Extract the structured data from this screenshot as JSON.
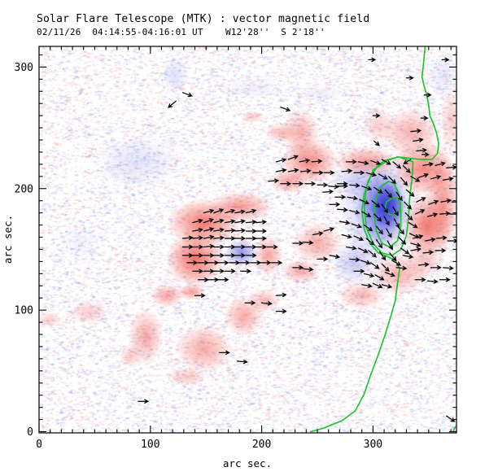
{
  "colors": {
    "red": "#f0564b",
    "blue_light": "#7c82e8",
    "blue_mid": "#4d52dc",
    "blue_deep": "#3136cd",
    "green": "#17c428",
    "noise_blue": "#969ce8",
    "noise_red": "#f4a09b",
    "axis": "#000000"
  },
  "chart_data": {
    "type": "heatmap",
    "title": "Solar Flare Telescope (MTK) : vector magnetic field",
    "subtitle": "02/11/26  04:14:55-04:16:01 UT    W12'28''  S 2'18''",
    "xlabel": "arc sec.",
    "ylabel": "arc sec.",
    "xlim": [
      0,
      375
    ],
    "ylim": [
      -1,
      317
    ],
    "x_major_ticks": [
      0,
      100,
      200,
      300
    ],
    "y_major_ticks": [
      0,
      100,
      200,
      300
    ],
    "minor_tick_step": 10,
    "grid": false,
    "legend": null,
    "polarity_regions": {
      "positive_red": [
        [
          148,
          172,
          33,
          20,
          0.8
        ],
        [
          140,
          142,
          26,
          23,
          0.85
        ],
        [
          181,
          185,
          29,
          13,
          0.6
        ],
        [
          206,
          145,
          13,
          17,
          0.55
        ],
        [
          250,
          155,
          22,
          17,
          0.5
        ],
        [
          235,
          132,
          18,
          10,
          0.5
        ],
        [
          243,
          222,
          26,
          19,
          0.7
        ],
        [
          224,
          206,
          18,
          10,
          0.55
        ],
        [
          217,
          246,
          15,
          8,
          0.4
        ],
        [
          192,
          259,
          11,
          5,
          0.3
        ],
        [
          235,
          246,
          18,
          20,
          0.45
        ],
        [
          294,
          222,
          29,
          13,
          0.6
        ],
        [
          345,
          216,
          29,
          23,
          0.7
        ],
        [
          349,
          169,
          22,
          27,
          0.8
        ],
        [
          363,
          189,
          15,
          40,
          0.6
        ],
        [
          334,
          246,
          26,
          20,
          0.45
        ],
        [
          305,
          252,
          15,
          15,
          0.3
        ],
        [
          345,
          140,
          18,
          14,
          0.35
        ],
        [
          323,
          129,
          26,
          17,
          0.45
        ],
        [
          290,
          112,
          22,
          12,
          0.4
        ],
        [
          371,
          256,
          11,
          27,
          0.3
        ],
        [
          115,
          112,
          15,
          10,
          0.5
        ],
        [
          137,
          115,
          13,
          7,
          0.55
        ],
        [
          96,
          78,
          16,
          23,
          0.5
        ],
        [
          148,
          68,
          26,
          20,
          0.5
        ],
        [
          184,
          95,
          18,
          17,
          0.5
        ],
        [
          202,
          108,
          15,
          10,
          0.4
        ],
        [
          133,
          45,
          18,
          8,
          0.35
        ],
        [
          82,
          62,
          11,
          10,
          0.3
        ],
        [
          45,
          98,
          18,
          10,
          0.3
        ],
        [
          9,
          92,
          11,
          7,
          0.3
        ]
      ],
      "negative_blue": [
        [
          305,
          182,
          35,
          46,
          0.55,
          "blue_light"
        ],
        [
          308,
          185,
          23,
          32,
          0.8,
          "blue_mid"
        ],
        [
          313,
          186,
          15,
          20,
          0.95,
          "blue_deep"
        ],
        [
          283,
          139,
          20,
          19,
          0.4,
          "blue_light"
        ],
        [
          283,
          206,
          22,
          15,
          0.32,
          "blue_light"
        ],
        [
          182,
          147,
          15,
          11,
          0.85,
          "blue_light"
        ],
        [
          89,
          222,
          40,
          23,
          0.22,
          "blue_light"
        ],
        [
          122,
          293,
          13,
          15,
          0.25,
          "blue_light"
        ],
        [
          363,
          293,
          15,
          19,
          0.18,
          "blue_light"
        ],
        [
          192,
          283,
          29,
          12,
          0.12,
          "blue_light"
        ],
        [
          254,
          279,
          26,
          8,
          0.12,
          "blue_light"
        ],
        [
          38,
          155,
          22,
          17,
          0.1,
          "blue_light"
        ]
      ]
    },
    "neutral_line": [
      [
        347,
        318
      ],
      [
        346,
        309
      ],
      [
        345,
        300
      ],
      [
        344,
        292
      ],
      [
        346,
        284
      ],
      [
        348,
        278
      ],
      [
        350,
        269
      ],
      [
        351,
        260
      ],
      [
        354,
        254
      ],
      [
        357,
        246
      ],
      [
        359,
        237
      ],
      [
        358,
        229
      ],
      [
        353,
        224
      ],
      [
        343,
        224
      ],
      [
        333,
        225
      ],
      [
        322,
        226
      ],
      [
        313,
        223
      ],
      [
        303,
        217
      ],
      [
        296,
        207
      ],
      [
        292,
        195
      ],
      [
        290,
        182
      ],
      [
        292,
        167
      ],
      [
        297,
        155
      ],
      [
        305,
        147
      ],
      [
        313,
        144
      ],
      [
        320,
        141
      ],
      [
        324,
        134
      ],
      [
        322,
        122
      ],
      [
        320,
        108
      ],
      [
        316,
        95
      ],
      [
        311,
        80
      ],
      [
        305,
        64
      ],
      [
        298,
        47
      ],
      [
        292,
        31
      ],
      [
        284,
        17
      ],
      [
        272,
        9
      ],
      [
        256,
        3
      ],
      [
        244,
        0
      ]
    ],
    "neutral_line_2": [
      [
        372,
        0
      ],
      [
        374,
        4
      ]
    ],
    "contours": [
      [
        [
          336,
          222
        ],
        [
          323,
          226
        ],
        [
          310,
          223
        ],
        [
          300,
          215
        ],
        [
          294,
          201
        ],
        [
          292,
          185
        ],
        [
          294,
          168
        ],
        [
          300,
          155
        ],
        [
          308,
          147
        ],
        [
          317,
          145
        ],
        [
          325,
          150
        ],
        [
          330,
          161
        ],
        [
          332,
          177
        ],
        [
          333,
          193
        ],
        [
          335,
          208
        ]
      ],
      [
        [
          314,
          206
        ],
        [
          306,
          201
        ],
        [
          302,
          190
        ],
        [
          301,
          178
        ],
        [
          303,
          165
        ],
        [
          308,
          155
        ],
        [
          315,
          152
        ],
        [
          322,
          157
        ],
        [
          325,
          169
        ],
        [
          325,
          182
        ],
        [
          323,
          196
        ],
        [
          319,
          204
        ]
      ],
      [
        [
          318,
          193
        ],
        [
          312,
          189
        ],
        [
          311,
          184
        ],
        [
          314,
          179
        ],
        [
          319,
          178
        ],
        [
          324,
          182
        ],
        [
          325,
          188
        ],
        [
          322,
          192
        ]
      ]
    ],
    "vectors": [
      [
        148,
        180,
        15
      ],
      [
        157,
        180,
        20
      ],
      [
        167,
        180,
        15
      ],
      [
        176,
        180,
        10
      ],
      [
        186,
        180,
        15
      ],
      [
        138,
        172,
        15
      ],
      [
        148,
        172,
        20
      ],
      [
        157,
        172,
        15
      ],
      [
        167,
        172,
        10
      ],
      [
        176,
        172,
        10
      ],
      [
        186,
        172,
        5
      ],
      [
        195,
        172,
        5
      ],
      [
        138,
        165,
        10
      ],
      [
        148,
        165,
        15
      ],
      [
        157,
        165,
        10
      ],
      [
        167,
        165,
        5
      ],
      [
        176,
        165,
        5
      ],
      [
        186,
        165,
        0
      ],
      [
        195,
        165,
        0
      ],
      [
        129,
        159,
        5
      ],
      [
        138,
        159,
        5
      ],
      [
        148,
        159,
        10
      ],
      [
        157,
        159,
        5
      ],
      [
        167,
        159,
        0
      ],
      [
        176,
        159,
        0
      ],
      [
        186,
        159,
        0
      ],
      [
        195,
        159,
        0
      ],
      [
        129,
        152,
        0
      ],
      [
        138,
        152,
        0
      ],
      [
        148,
        152,
        5
      ],
      [
        157,
        152,
        0
      ],
      [
        167,
        152,
        0
      ],
      [
        176,
        152,
        0
      ],
      [
        186,
        152,
        0
      ],
      [
        195,
        152,
        0
      ],
      [
        205,
        152,
        0
      ],
      [
        129,
        145,
        0
      ],
      [
        138,
        145,
        0
      ],
      [
        148,
        145,
        0
      ],
      [
        157,
        145,
        0
      ],
      [
        167,
        145,
        0
      ],
      [
        176,
        145,
        0
      ],
      [
        186,
        145,
        0
      ],
      [
        133,
        139,
        0
      ],
      [
        143,
        139,
        0
      ],
      [
        152,
        139,
        0
      ],
      [
        161,
        139,
        0
      ],
      [
        171,
        139,
        0
      ],
      [
        180,
        139,
        0
      ],
      [
        190,
        139,
        0
      ],
      [
        199,
        139,
        0
      ],
      [
        209,
        139,
        0
      ],
      [
        138,
        132,
        0
      ],
      [
        148,
        132,
        0
      ],
      [
        157,
        132,
        0
      ],
      [
        167,
        132,
        0
      ],
      [
        181,
        132,
        0
      ],
      [
        143,
        125,
        0
      ],
      [
        152,
        125,
        0
      ],
      [
        161,
        125,
        0
      ],
      [
        228,
        155,
        0
      ],
      [
        237,
        156,
        -5
      ],
      [
        246,
        162,
        10
      ],
      [
        256,
        165,
        15
      ],
      [
        261,
        145,
        -10
      ],
      [
        250,
        142,
        0
      ],
      [
        228,
        135,
        0
      ],
      [
        237,
        134,
        -5
      ],
      [
        213,
        222,
        15
      ],
      [
        224,
        224,
        20
      ],
      [
        234,
        222,
        10
      ],
      [
        245,
        222,
        5
      ],
      [
        213,
        214,
        10
      ],
      [
        224,
        214,
        10
      ],
      [
        235,
        214,
        5
      ],
      [
        246,
        213,
        0
      ],
      [
        256,
        213,
        0
      ],
      [
        206,
        206,
        5
      ],
      [
        217,
        204,
        0
      ],
      [
        228,
        204,
        0
      ],
      [
        239,
        204,
        0
      ],
      [
        250,
        203,
        0
      ],
      [
        260,
        202,
        -5
      ],
      [
        268,
        202,
        0
      ],
      [
        276,
        222,
        0
      ],
      [
        287,
        222,
        -10
      ],
      [
        298,
        223,
        -20
      ],
      [
        308,
        224,
        -30
      ],
      [
        318,
        222,
        -40
      ],
      [
        327,
        219,
        -45
      ],
      [
        272,
        214,
        5
      ],
      [
        283,
        213,
        0
      ],
      [
        294,
        213,
        -15
      ],
      [
        305,
        212,
        -30
      ],
      [
        314,
        210,
        -45
      ],
      [
        325,
        209,
        -50
      ],
      [
        334,
        210,
        -30
      ],
      [
        268,
        204,
        0
      ],
      [
        279,
        203,
        -5
      ],
      [
        290,
        202,
        -20
      ],
      [
        301,
        201,
        -35
      ],
      [
        311,
        199,
        -50
      ],
      [
        321,
        197,
        -55
      ],
      [
        330,
        199,
        -40
      ],
      [
        266,
        193,
        0
      ],
      [
        277,
        193,
        -10
      ],
      [
        288,
        191,
        -25
      ],
      [
        299,
        190,
        -40
      ],
      [
        308,
        187,
        -55
      ],
      [
        318,
        185,
        -60
      ],
      [
        328,
        189,
        -45
      ],
      [
        268,
        183,
        -5
      ],
      [
        279,
        182,
        -15
      ],
      [
        290,
        181,
        -30
      ],
      [
        301,
        179,
        -45
      ],
      [
        310,
        177,
        -60
      ],
      [
        319,
        175,
        -60
      ],
      [
        329,
        180,
        -45
      ],
      [
        270,
        173,
        -10
      ],
      [
        281,
        171,
        -20
      ],
      [
        292,
        170,
        -35
      ],
      [
        303,
        169,
        -50
      ],
      [
        312,
        167,
        -60
      ],
      [
        322,
        169,
        -50
      ],
      [
        332,
        172,
        -30
      ],
      [
        272,
        162,
        -15
      ],
      [
        283,
        161,
        -25
      ],
      [
        294,
        159,
        -40
      ],
      [
        303,
        158,
        -55
      ],
      [
        313,
        157,
        -60
      ],
      [
        323,
        160,
        -45
      ],
      [
        333,
        163,
        -25
      ],
      [
        276,
        152,
        -10
      ],
      [
        287,
        151,
        -25
      ],
      [
        296,
        149,
        -40
      ],
      [
        306,
        148,
        -55
      ],
      [
        315,
        147,
        -50
      ],
      [
        325,
        151,
        -35
      ],
      [
        334,
        155,
        -15
      ],
      [
        279,
        142,
        -5
      ],
      [
        289,
        141,
        -20
      ],
      [
        298,
        139,
        -35
      ],
      [
        308,
        138,
        -45
      ],
      [
        317,
        141,
        -30
      ],
      [
        327,
        145,
        -10
      ],
      [
        283,
        132,
        0
      ],
      [
        292,
        130,
        -15
      ],
      [
        302,
        129,
        -30
      ],
      [
        311,
        131,
        -20
      ],
      [
        321,
        135,
        -5
      ],
      [
        290,
        121,
        -10
      ],
      [
        300,
        122,
        -25
      ],
      [
        308,
        121,
        -15
      ],
      [
        255,
        197,
        5
      ],
      [
        261,
        187,
        0
      ],
      [
        345,
        219,
        10
      ],
      [
        356,
        219,
        15
      ],
      [
        366,
        217,
        5
      ],
      [
        341,
        209,
        20
      ],
      [
        352,
        208,
        15
      ],
      [
        363,
        207,
        10
      ],
      [
        339,
        189,
        25
      ],
      [
        350,
        187,
        20
      ],
      [
        361,
        189,
        10
      ],
      [
        371,
        189,
        0
      ],
      [
        338,
        179,
        25
      ],
      [
        349,
        177,
        15
      ],
      [
        360,
        179,
        5
      ],
      [
        369,
        179,
        0
      ],
      [
        336,
        159,
        15
      ],
      [
        347,
        157,
        10
      ],
      [
        357,
        159,
        5
      ],
      [
        367,
        157,
        0
      ],
      [
        334,
        149,
        10
      ],
      [
        345,
        147,
        5
      ],
      [
        356,
        149,
        0
      ],
      [
        341,
        137,
        5
      ],
      [
        352,
        135,
        0
      ],
      [
        363,
        135,
        -5
      ],
      [
        338,
        125,
        0
      ],
      [
        349,
        124,
        -5
      ],
      [
        360,
        125,
        0
      ],
      [
        334,
        247,
        5
      ],
      [
        336,
        239,
        10
      ],
      [
        339,
        231,
        5
      ],
      [
        334,
        224,
        212,
        10
      ],
      [
        129,
        279,
        -20
      ],
      [
        123,
        272,
        -140
      ],
      [
        217,
        267,
        -20
      ],
      [
        362,
        306,
        0,
        8
      ],
      [
        346,
        277,
        0,
        8
      ],
      [
        343,
        258,
        0,
        8
      ],
      [
        344,
        228,
        0,
        8
      ],
      [
        300,
        260,
        0,
        8
      ],
      [
        301,
        239,
        -40,
        8
      ],
      [
        330,
        291,
        0,
        8
      ],
      [
        296,
        306,
        0,
        8
      ],
      [
        140,
        112,
        0
      ],
      [
        185,
        106,
        0
      ],
      [
        200,
        106,
        -5
      ],
      [
        213,
        112,
        5
      ],
      [
        213,
        99,
        0
      ],
      [
        162,
        65,
        0
      ],
      [
        178,
        58,
        -5
      ],
      [
        89,
        25,
        0
      ],
      [
        366,
        13,
        -35
      ]
    ]
  }
}
